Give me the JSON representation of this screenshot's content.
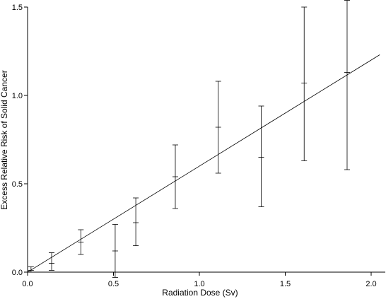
{
  "chart_data": {
    "type": "scatter",
    "xlabel": "Radiation Dose (Sv)",
    "ylabel": "Excess Relative Risk of Solid Cancer",
    "xlim": [
      0,
      2.0
    ],
    "ylim": [
      0,
      1.5
    ],
    "x_ticks": [
      0.0,
      0.5,
      1.0,
      1.5,
      2.0
    ],
    "x_tick_labels": [
      "0.0",
      "0.5",
      "1.0",
      "1.5",
      "2.0"
    ],
    "y_ticks": [
      0.0,
      0.5,
      1.0,
      1.5
    ],
    "y_tick_labels": [
      "0.0",
      "0.5",
      "1.0",
      "1.5"
    ],
    "grid": false,
    "legend": "none",
    "fit_line": {
      "x": [
        0.0,
        2.0
      ],
      "y": [
        0.0,
        1.2
      ]
    },
    "points": [
      {
        "x": 0.02,
        "y": 0.01,
        "lower": 0.0,
        "upper": 0.03
      },
      {
        "x": 0.14,
        "y": 0.05,
        "lower": 0.01,
        "upper": 0.11
      },
      {
        "x": 0.31,
        "y": 0.17,
        "lower": 0.1,
        "upper": 0.24
      },
      {
        "x": 0.51,
        "y": 0.12,
        "lower": -0.03,
        "upper": 0.27
      },
      {
        "x": 0.63,
        "y": 0.28,
        "lower": 0.15,
        "upper": 0.42
      },
      {
        "x": 0.86,
        "y": 0.54,
        "lower": 0.36,
        "upper": 0.72
      },
      {
        "x": 1.11,
        "y": 0.82,
        "lower": 0.56,
        "upper": 1.08
      },
      {
        "x": 1.36,
        "y": 0.65,
        "lower": 0.37,
        "upper": 0.94
      },
      {
        "x": 1.61,
        "y": 1.07,
        "lower": 0.63,
        "upper": 1.5
      },
      {
        "x": 1.86,
        "y": 1.13,
        "lower": 0.58,
        "upper": 1.55
      }
    ]
  }
}
